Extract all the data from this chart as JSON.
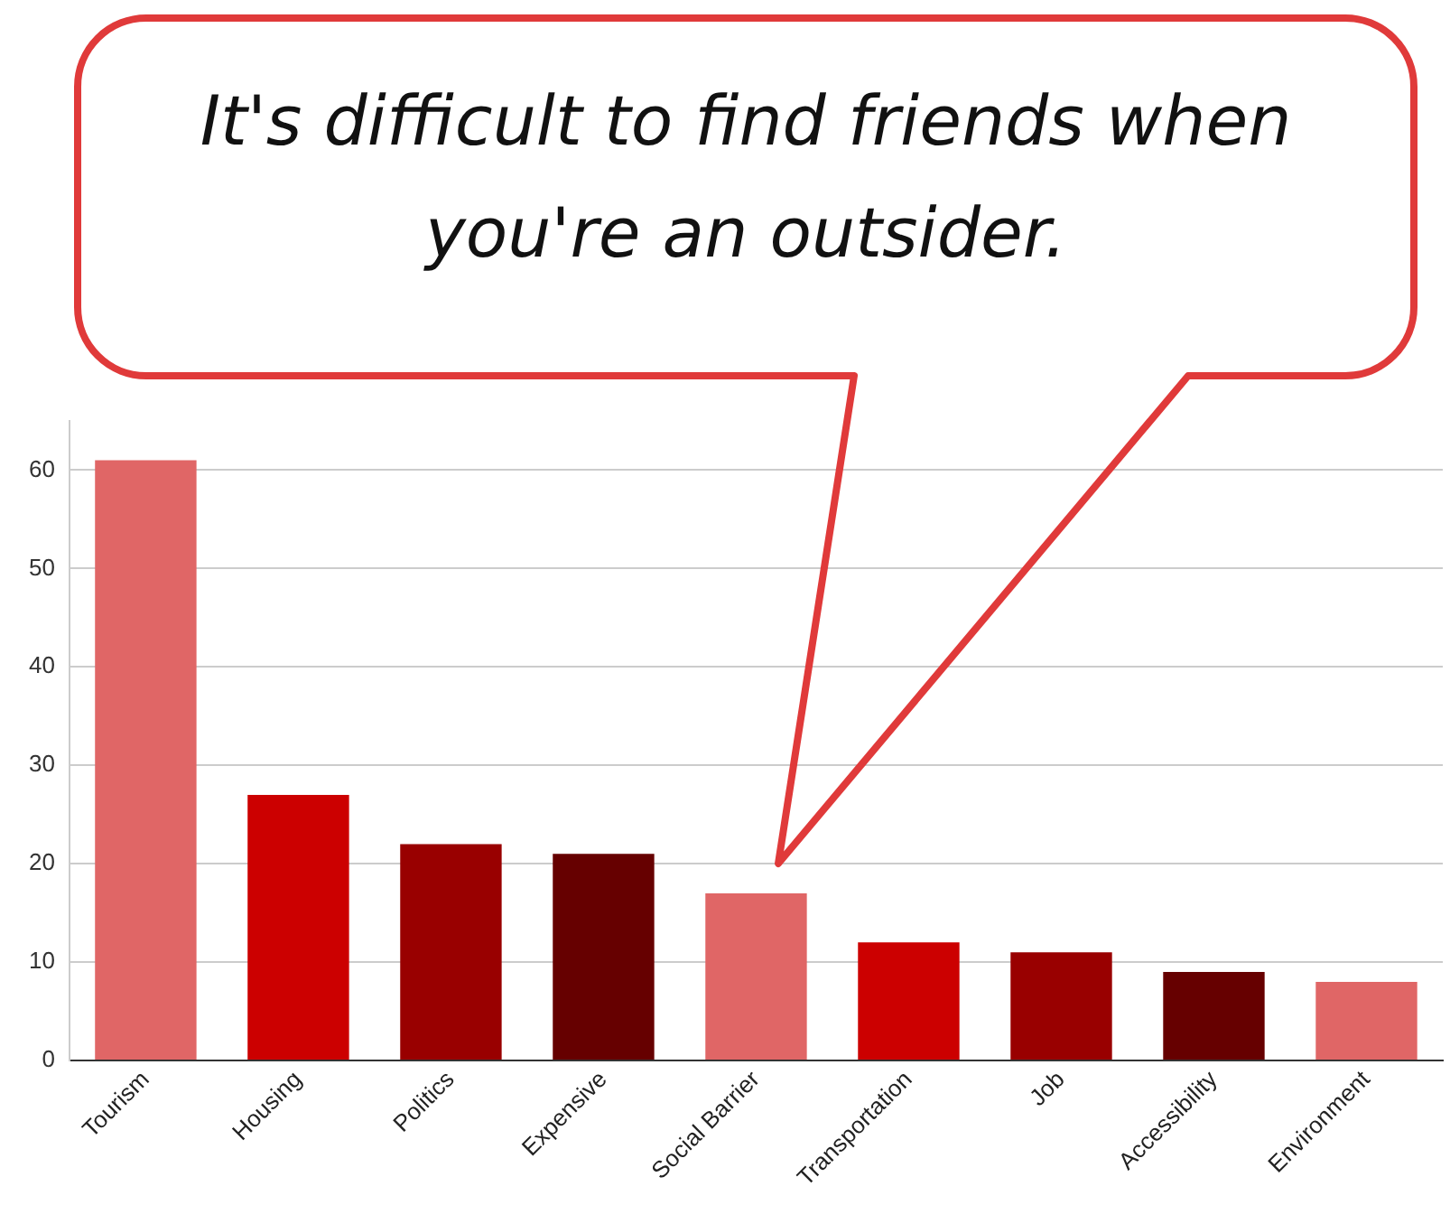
{
  "chart_data": {
    "type": "bar",
    "title": "It's difficult to find friends when you're an outsider.",
    "categories": [
      "Tourism",
      "Housing",
      "Politics",
      "Expensive",
      "Social Barrier",
      "Transportation",
      "Job",
      "Accessibility",
      "Environment"
    ],
    "values": [
      61,
      27,
      22,
      21,
      17,
      12,
      11,
      9,
      8
    ],
    "colors": [
      "#e06666",
      "#cc0000",
      "#990000",
      "#660000",
      "#e06666",
      "#cc0000",
      "#990000",
      "#660000",
      "#e06666"
    ],
    "ylim": [
      0,
      65
    ],
    "yticks": [
      0,
      10,
      20,
      30,
      40,
      50,
      60
    ],
    "grid": "y",
    "legend": false
  }
}
